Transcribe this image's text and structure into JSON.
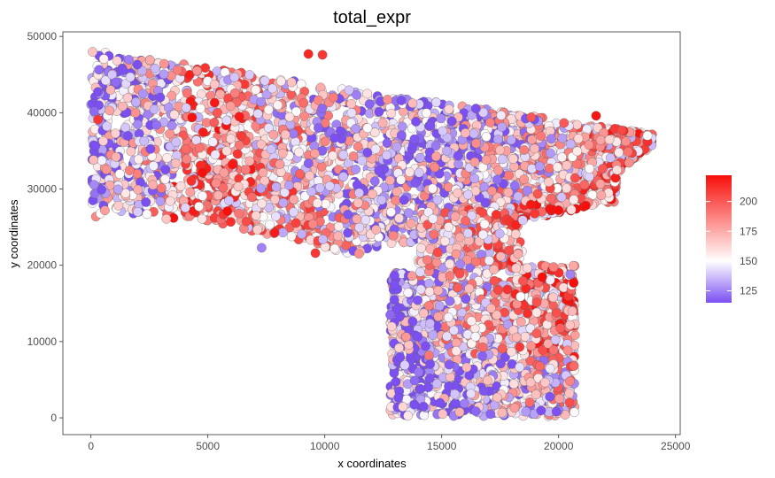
{
  "chart_data": {
    "type": "scatter",
    "title": "total_expr",
    "xlabel": "x coordinates",
    "ylabel": "y coordinates",
    "xlim": [
      -1200,
      25200
    ],
    "ylim": [
      -2200,
      50600
    ],
    "x_ticks": [
      0,
      5000,
      10000,
      15000,
      20000,
      25000
    ],
    "y_ticks": [
      0,
      10000,
      20000,
      30000,
      40000,
      50000
    ],
    "grid": false,
    "point_outline": "#606060",
    "color_scale": {
      "low": 115,
      "mid": 150,
      "high": 222,
      "low_color": "#7b4ff2",
      "mid_color": "#ffffff",
      "high_color": "#f80f0b"
    },
    "legend": {
      "position": "right",
      "ticks": [
        125,
        150,
        175,
        200
      ]
    },
    "cloud": {
      "seed": 20240611,
      "regions": [
        {
          "name": "upper tissue block",
          "x_range": [
            0,
            24000
          ],
          "y_top_at_x0": 48200,
          "y_top_at_xmax": 37200,
          "y_bottom_at_x0": 28000,
          "y_bottom_at_x_right": 22000,
          "n": 3400
        },
        {
          "name": "lower tissue block",
          "x_range": [
            12800,
            20700
          ],
          "y_range": [
            200,
            27000
          ],
          "n": 1900
        }
      ]
    },
    "points": [
      {
        "x": 9300,
        "y": 47700,
        "v": 215
      },
      {
        "x": 9900,
        "y": 47600,
        "v": 210
      },
      {
        "x": 21600,
        "y": 39600,
        "v": 220
      },
      {
        "x": 22400,
        "y": 37900,
        "v": 210
      },
      {
        "x": 22700,
        "y": 37700,
        "v": 205
      },
      {
        "x": 23800,
        "y": 37000,
        "v": 150
      },
      {
        "x": 22500,
        "y": 32500,
        "v": 160
      },
      {
        "x": 18600,
        "y": 800,
        "v": 130
      },
      {
        "x": 7300,
        "y": 22300,
        "v": 125
      },
      {
        "x": 9600,
        "y": 21600,
        "v": 210
      },
      {
        "x": 12800,
        "y": 13500,
        "v": 120
      },
      {
        "x": 20500,
        "y": 18800,
        "v": 125
      },
      {
        "x": 300,
        "y": 39100,
        "v": 210
      },
      {
        "x": 2000,
        "y": 27000,
        "v": 140
      }
    ]
  }
}
